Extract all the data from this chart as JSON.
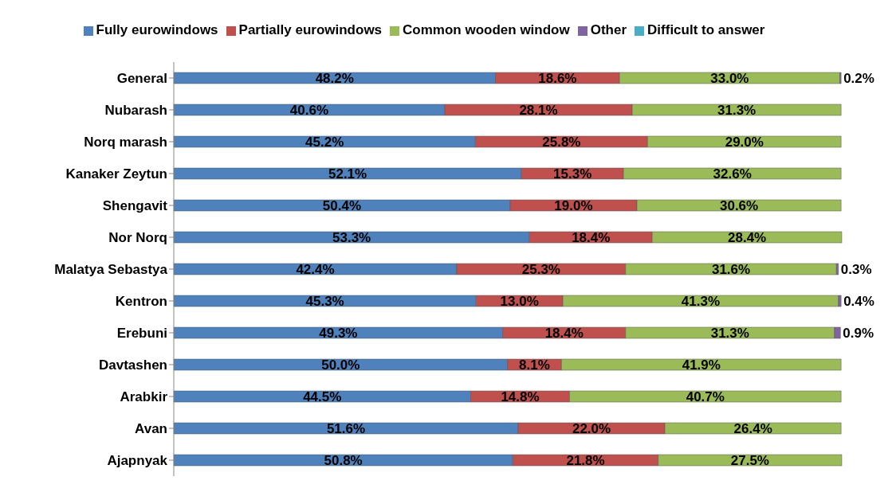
{
  "chart_data": {
    "type": "bar",
    "orientation": "horizontal",
    "stacked": true,
    "legend": "top",
    "categories": [
      "General",
      "Nubarash",
      "Norq marash",
      "Kanaker Zeytun",
      "Shengavit",
      "Nor Norq",
      "Malatya Sebastya",
      "Kentron",
      "Erebuni",
      "Davtashen",
      "Arabkir",
      "Avan",
      "Ajapnyak"
    ],
    "series": [
      {
        "name": "Fully eurowindows",
        "color": "#4f81bd",
        "values": [
          48.2,
          40.6,
          45.2,
          52.1,
          50.4,
          53.3,
          42.4,
          45.3,
          49.3,
          50.0,
          44.5,
          51.6,
          50.8
        ],
        "value_labels": [
          "48.2%",
          "40.6%",
          "45.2%",
          "52.1%",
          "50.4%",
          "53.3%",
          "42.4%",
          "45.3%",
          "49.3%",
          "50.0%",
          "44.5%",
          "51.6%",
          "50.8%"
        ]
      },
      {
        "name": "Partially eurowindows",
        "color": "#c0504d",
        "values": [
          18.6,
          28.1,
          25.8,
          15.3,
          19.0,
          18.4,
          25.3,
          13.0,
          18.4,
          8.1,
          14.8,
          22.0,
          21.8
        ],
        "value_labels": [
          "18.6%",
          "28.1%",
          "25.8%",
          "15.3%",
          "19.0%",
          "18.4%",
          "25.3%",
          "13.0%",
          "18.4%",
          "8.1%",
          "14.8%",
          "22.0%",
          "21.8%"
        ]
      },
      {
        "name": "Common wooden window",
        "color": "#9bbb59",
        "values": [
          33.0,
          31.3,
          29.0,
          32.6,
          30.6,
          28.4,
          31.6,
          41.3,
          31.3,
          41.9,
          40.7,
          26.4,
          27.5
        ],
        "value_labels": [
          "33.0%",
          "31.3%",
          "29.0%",
          "32.6%",
          "30.6%",
          "28.4%",
          "31.6%",
          "41.3%",
          "31.3%",
          "41.9%",
          "40.7%",
          "26.4%",
          "27.5%"
        ]
      },
      {
        "name": "Other",
        "color": "#8064a2",
        "values": [
          0.2,
          null,
          null,
          null,
          null,
          null,
          0.3,
          0.4,
          0.9,
          null,
          null,
          null,
          null
        ],
        "value_labels": [
          "0.2%",
          null,
          null,
          null,
          null,
          null,
          "0.3%",
          "0.4%",
          "0.9%",
          null,
          null,
          null,
          null
        ]
      },
      {
        "name": "Difficult to answer",
        "color": "#4bacc6",
        "values": [
          null,
          null,
          null,
          null,
          null,
          null,
          null,
          null,
          null,
          null,
          null,
          null,
          null
        ]
      }
    ]
  }
}
